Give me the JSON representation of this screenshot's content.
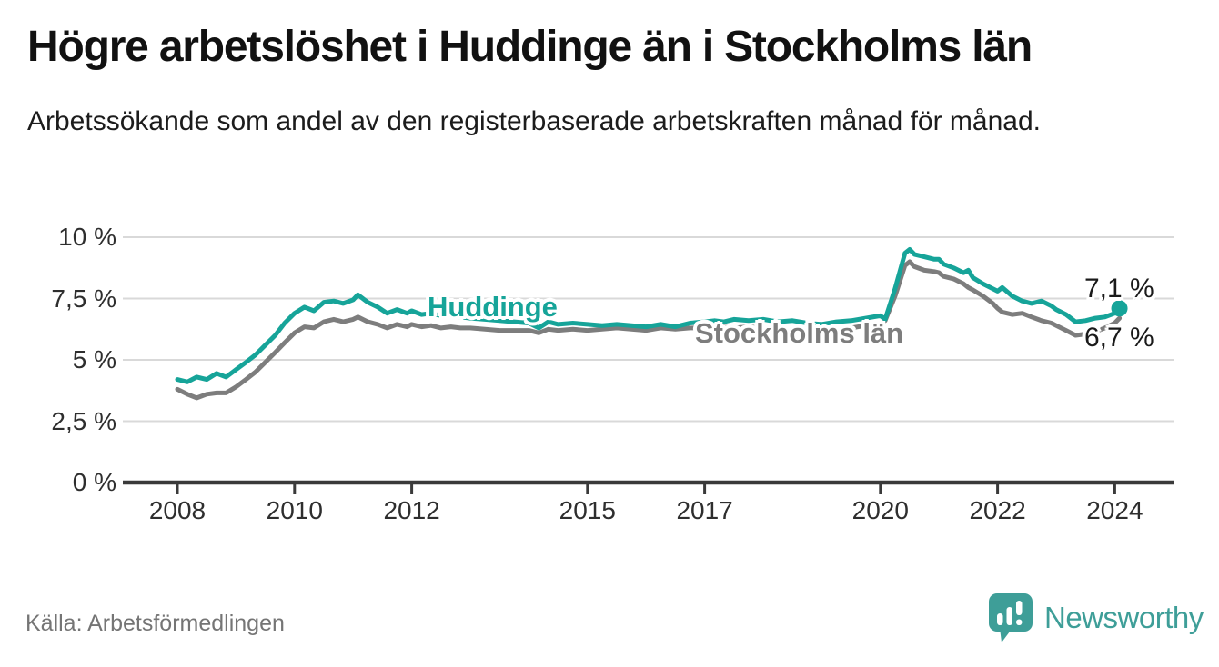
{
  "header": {
    "title": "Högre arbetslöshet i Huddinge än i Stockholms län",
    "subtitle": "Arbetssökande som andel av den registerbaserade arbetskraften månad för månad."
  },
  "chart_data": {
    "type": "line",
    "unit": "percent",
    "grid": true,
    "y_axis": {
      "range": [
        0,
        10.4
      ],
      "ticks": [
        {
          "label": "0 %",
          "value": 0
        },
        {
          "label": "2,5 %",
          "value": 2.5
        },
        {
          "label": "5 %",
          "value": 5
        },
        {
          "label": "7,5 %",
          "value": 7.5
        },
        {
          "label": "10 %",
          "value": 10
        }
      ]
    },
    "x_axis": {
      "range": [
        2007.1,
        2025.0
      ],
      "ticks": [
        {
          "label": "2008",
          "year": 2008
        },
        {
          "label": "2010",
          "year": 2010
        },
        {
          "label": "2012",
          "year": 2012
        },
        {
          "label": "2015",
          "year": 2015
        },
        {
          "label": "2017",
          "year": 2017
        },
        {
          "label": "2020",
          "year": 2020
        },
        {
          "label": "2022",
          "year": 2022
        },
        {
          "label": "2024",
          "year": 2024
        }
      ]
    },
    "series": [
      {
        "name": "Huddinge",
        "color": "#16a499",
        "end_label": "7,1 %",
        "end_value": 7.1,
        "end_dot": true,
        "points": [
          [
            2008.0,
            4.2
          ],
          [
            2008.17,
            4.1
          ],
          [
            2008.33,
            4.3
          ],
          [
            2008.5,
            4.2
          ],
          [
            2008.67,
            4.45
          ],
          [
            2008.83,
            4.3
          ],
          [
            2009.0,
            4.6
          ],
          [
            2009.17,
            4.9
          ],
          [
            2009.33,
            5.2
          ],
          [
            2009.5,
            5.6
          ],
          [
            2009.67,
            6.0
          ],
          [
            2009.83,
            6.5
          ],
          [
            2010.0,
            6.9
          ],
          [
            2010.17,
            7.15
          ],
          [
            2010.33,
            7.0
          ],
          [
            2010.5,
            7.35
          ],
          [
            2010.67,
            7.4
          ],
          [
            2010.83,
            7.3
          ],
          [
            2011.0,
            7.45
          ],
          [
            2011.08,
            7.65
          ],
          [
            2011.25,
            7.35
          ],
          [
            2011.42,
            7.15
          ],
          [
            2011.58,
            6.9
          ],
          [
            2011.75,
            7.05
          ],
          [
            2011.92,
            6.9
          ],
          [
            2012.0,
            7.0
          ],
          [
            2012.17,
            6.85
          ],
          [
            2012.33,
            6.9
          ],
          [
            2012.5,
            6.8
          ],
          [
            2012.67,
            6.85
          ],
          [
            2012.83,
            6.75
          ],
          [
            2013.0,
            6.7
          ],
          [
            2013.25,
            6.65
          ],
          [
            2013.5,
            6.6
          ],
          [
            2013.75,
            6.55
          ],
          [
            2014.0,
            6.5
          ],
          [
            2014.17,
            6.3
          ],
          [
            2014.33,
            6.55
          ],
          [
            2014.5,
            6.45
          ],
          [
            2014.75,
            6.5
          ],
          [
            2015.0,
            6.45
          ],
          [
            2015.25,
            6.4
          ],
          [
            2015.5,
            6.45
          ],
          [
            2015.75,
            6.4
          ],
          [
            2016.0,
            6.35
          ],
          [
            2016.25,
            6.45
          ],
          [
            2016.5,
            6.35
          ],
          [
            2016.75,
            6.5
          ],
          [
            2017.0,
            6.55
          ],
          [
            2017.17,
            6.6
          ],
          [
            2017.33,
            6.55
          ],
          [
            2017.5,
            6.65
          ],
          [
            2017.75,
            6.6
          ],
          [
            2018.0,
            6.65
          ],
          [
            2018.25,
            6.55
          ],
          [
            2018.5,
            6.6
          ],
          [
            2018.75,
            6.5
          ],
          [
            2019.0,
            6.45
          ],
          [
            2019.25,
            6.55
          ],
          [
            2019.5,
            6.6
          ],
          [
            2019.75,
            6.7
          ],
          [
            2020.0,
            6.8
          ],
          [
            2020.08,
            6.65
          ],
          [
            2020.25,
            7.9
          ],
          [
            2020.42,
            9.35
          ],
          [
            2020.5,
            9.5
          ],
          [
            2020.58,
            9.3
          ],
          [
            2020.75,
            9.2
          ],
          [
            2020.92,
            9.1
          ],
          [
            2021.0,
            9.1
          ],
          [
            2021.08,
            8.9
          ],
          [
            2021.25,
            8.75
          ],
          [
            2021.42,
            8.55
          ],
          [
            2021.5,
            8.65
          ],
          [
            2021.58,
            8.35
          ],
          [
            2021.75,
            8.1
          ],
          [
            2021.92,
            7.9
          ],
          [
            2022.0,
            7.8
          ],
          [
            2022.08,
            7.95
          ],
          [
            2022.25,
            7.6
          ],
          [
            2022.42,
            7.4
          ],
          [
            2022.58,
            7.3
          ],
          [
            2022.75,
            7.4
          ],
          [
            2022.92,
            7.2
          ],
          [
            2023.0,
            7.05
          ],
          [
            2023.17,
            6.85
          ],
          [
            2023.33,
            6.55
          ],
          [
            2023.5,
            6.6
          ],
          [
            2023.67,
            6.7
          ],
          [
            2023.83,
            6.75
          ],
          [
            2024.0,
            6.9
          ],
          [
            2024.08,
            7.1
          ]
        ]
      },
      {
        "name": "Stockholms län",
        "color": "#7d7d7d",
        "end_label": "6,7 %",
        "end_value": 6.7,
        "end_dot": false,
        "points": [
          [
            2008.0,
            3.8
          ],
          [
            2008.17,
            3.6
          ],
          [
            2008.33,
            3.45
          ],
          [
            2008.5,
            3.6
          ],
          [
            2008.67,
            3.65
          ],
          [
            2008.83,
            3.65
          ],
          [
            2009.0,
            3.9
          ],
          [
            2009.17,
            4.2
          ],
          [
            2009.33,
            4.5
          ],
          [
            2009.5,
            4.9
          ],
          [
            2009.67,
            5.3
          ],
          [
            2009.83,
            5.7
          ],
          [
            2010.0,
            6.1
          ],
          [
            2010.17,
            6.35
          ],
          [
            2010.33,
            6.3
          ],
          [
            2010.5,
            6.55
          ],
          [
            2010.67,
            6.65
          ],
          [
            2010.83,
            6.55
          ],
          [
            2011.0,
            6.65
          ],
          [
            2011.08,
            6.75
          ],
          [
            2011.25,
            6.55
          ],
          [
            2011.42,
            6.45
          ],
          [
            2011.58,
            6.3
          ],
          [
            2011.75,
            6.45
          ],
          [
            2011.92,
            6.35
          ],
          [
            2012.0,
            6.45
          ],
          [
            2012.17,
            6.35
          ],
          [
            2012.33,
            6.4
          ],
          [
            2012.5,
            6.3
          ],
          [
            2012.67,
            6.35
          ],
          [
            2012.83,
            6.3
          ],
          [
            2013.0,
            6.3
          ],
          [
            2013.25,
            6.25
          ],
          [
            2013.5,
            6.2
          ],
          [
            2013.75,
            6.2
          ],
          [
            2014.0,
            6.2
          ],
          [
            2014.17,
            6.1
          ],
          [
            2014.33,
            6.25
          ],
          [
            2014.5,
            6.2
          ],
          [
            2014.75,
            6.25
          ],
          [
            2015.0,
            6.2
          ],
          [
            2015.25,
            6.25
          ],
          [
            2015.5,
            6.3
          ],
          [
            2015.75,
            6.25
          ],
          [
            2016.0,
            6.2
          ],
          [
            2016.25,
            6.3
          ],
          [
            2016.5,
            6.25
          ],
          [
            2016.75,
            6.3
          ],
          [
            2017.0,
            6.3
          ],
          [
            2017.25,
            6.35
          ],
          [
            2017.5,
            6.3
          ],
          [
            2017.75,
            6.35
          ],
          [
            2018.0,
            6.3
          ],
          [
            2018.25,
            6.25
          ],
          [
            2018.5,
            6.2
          ],
          [
            2018.75,
            6.15
          ],
          [
            2019.0,
            6.1
          ],
          [
            2019.25,
            6.2
          ],
          [
            2019.5,
            6.3
          ],
          [
            2019.75,
            6.4
          ],
          [
            2020.0,
            6.5
          ],
          [
            2020.08,
            6.6
          ],
          [
            2020.25,
            7.6
          ],
          [
            2020.42,
            8.85
          ],
          [
            2020.5,
            9.0
          ],
          [
            2020.58,
            8.8
          ],
          [
            2020.75,
            8.65
          ],
          [
            2020.92,
            8.6
          ],
          [
            2021.0,
            8.55
          ],
          [
            2021.08,
            8.4
          ],
          [
            2021.25,
            8.3
          ],
          [
            2021.42,
            8.1
          ],
          [
            2021.5,
            7.95
          ],
          [
            2021.58,
            7.85
          ],
          [
            2021.75,
            7.6
          ],
          [
            2021.92,
            7.3
          ],
          [
            2022.0,
            7.1
          ],
          [
            2022.08,
            6.95
          ],
          [
            2022.25,
            6.85
          ],
          [
            2022.42,
            6.9
          ],
          [
            2022.58,
            6.75
          ],
          [
            2022.75,
            6.6
          ],
          [
            2022.92,
            6.5
          ],
          [
            2023.0,
            6.4
          ],
          [
            2023.17,
            6.2
          ],
          [
            2023.33,
            6.0
          ],
          [
            2023.5,
            6.05
          ],
          [
            2023.67,
            6.15
          ],
          [
            2023.83,
            6.3
          ],
          [
            2024.0,
            6.5
          ],
          [
            2024.08,
            6.7
          ]
        ]
      }
    ],
    "title": "Högre arbetslöshet i Huddinge än i Stockholms län",
    "xlabel": "",
    "ylabel": ""
  },
  "footer": {
    "source": "Källa: Arbetsförmedlingen",
    "brand_name": "Newsworthy"
  },
  "colors": {
    "accent_teal": "#16a499",
    "series_gray": "#7d7d7d",
    "grid": "#d9d9d9",
    "axis": "#3a3a3a",
    "text": "#1a1a1a",
    "muted_text": "#757575",
    "brand_teal": "#3e9e98"
  }
}
